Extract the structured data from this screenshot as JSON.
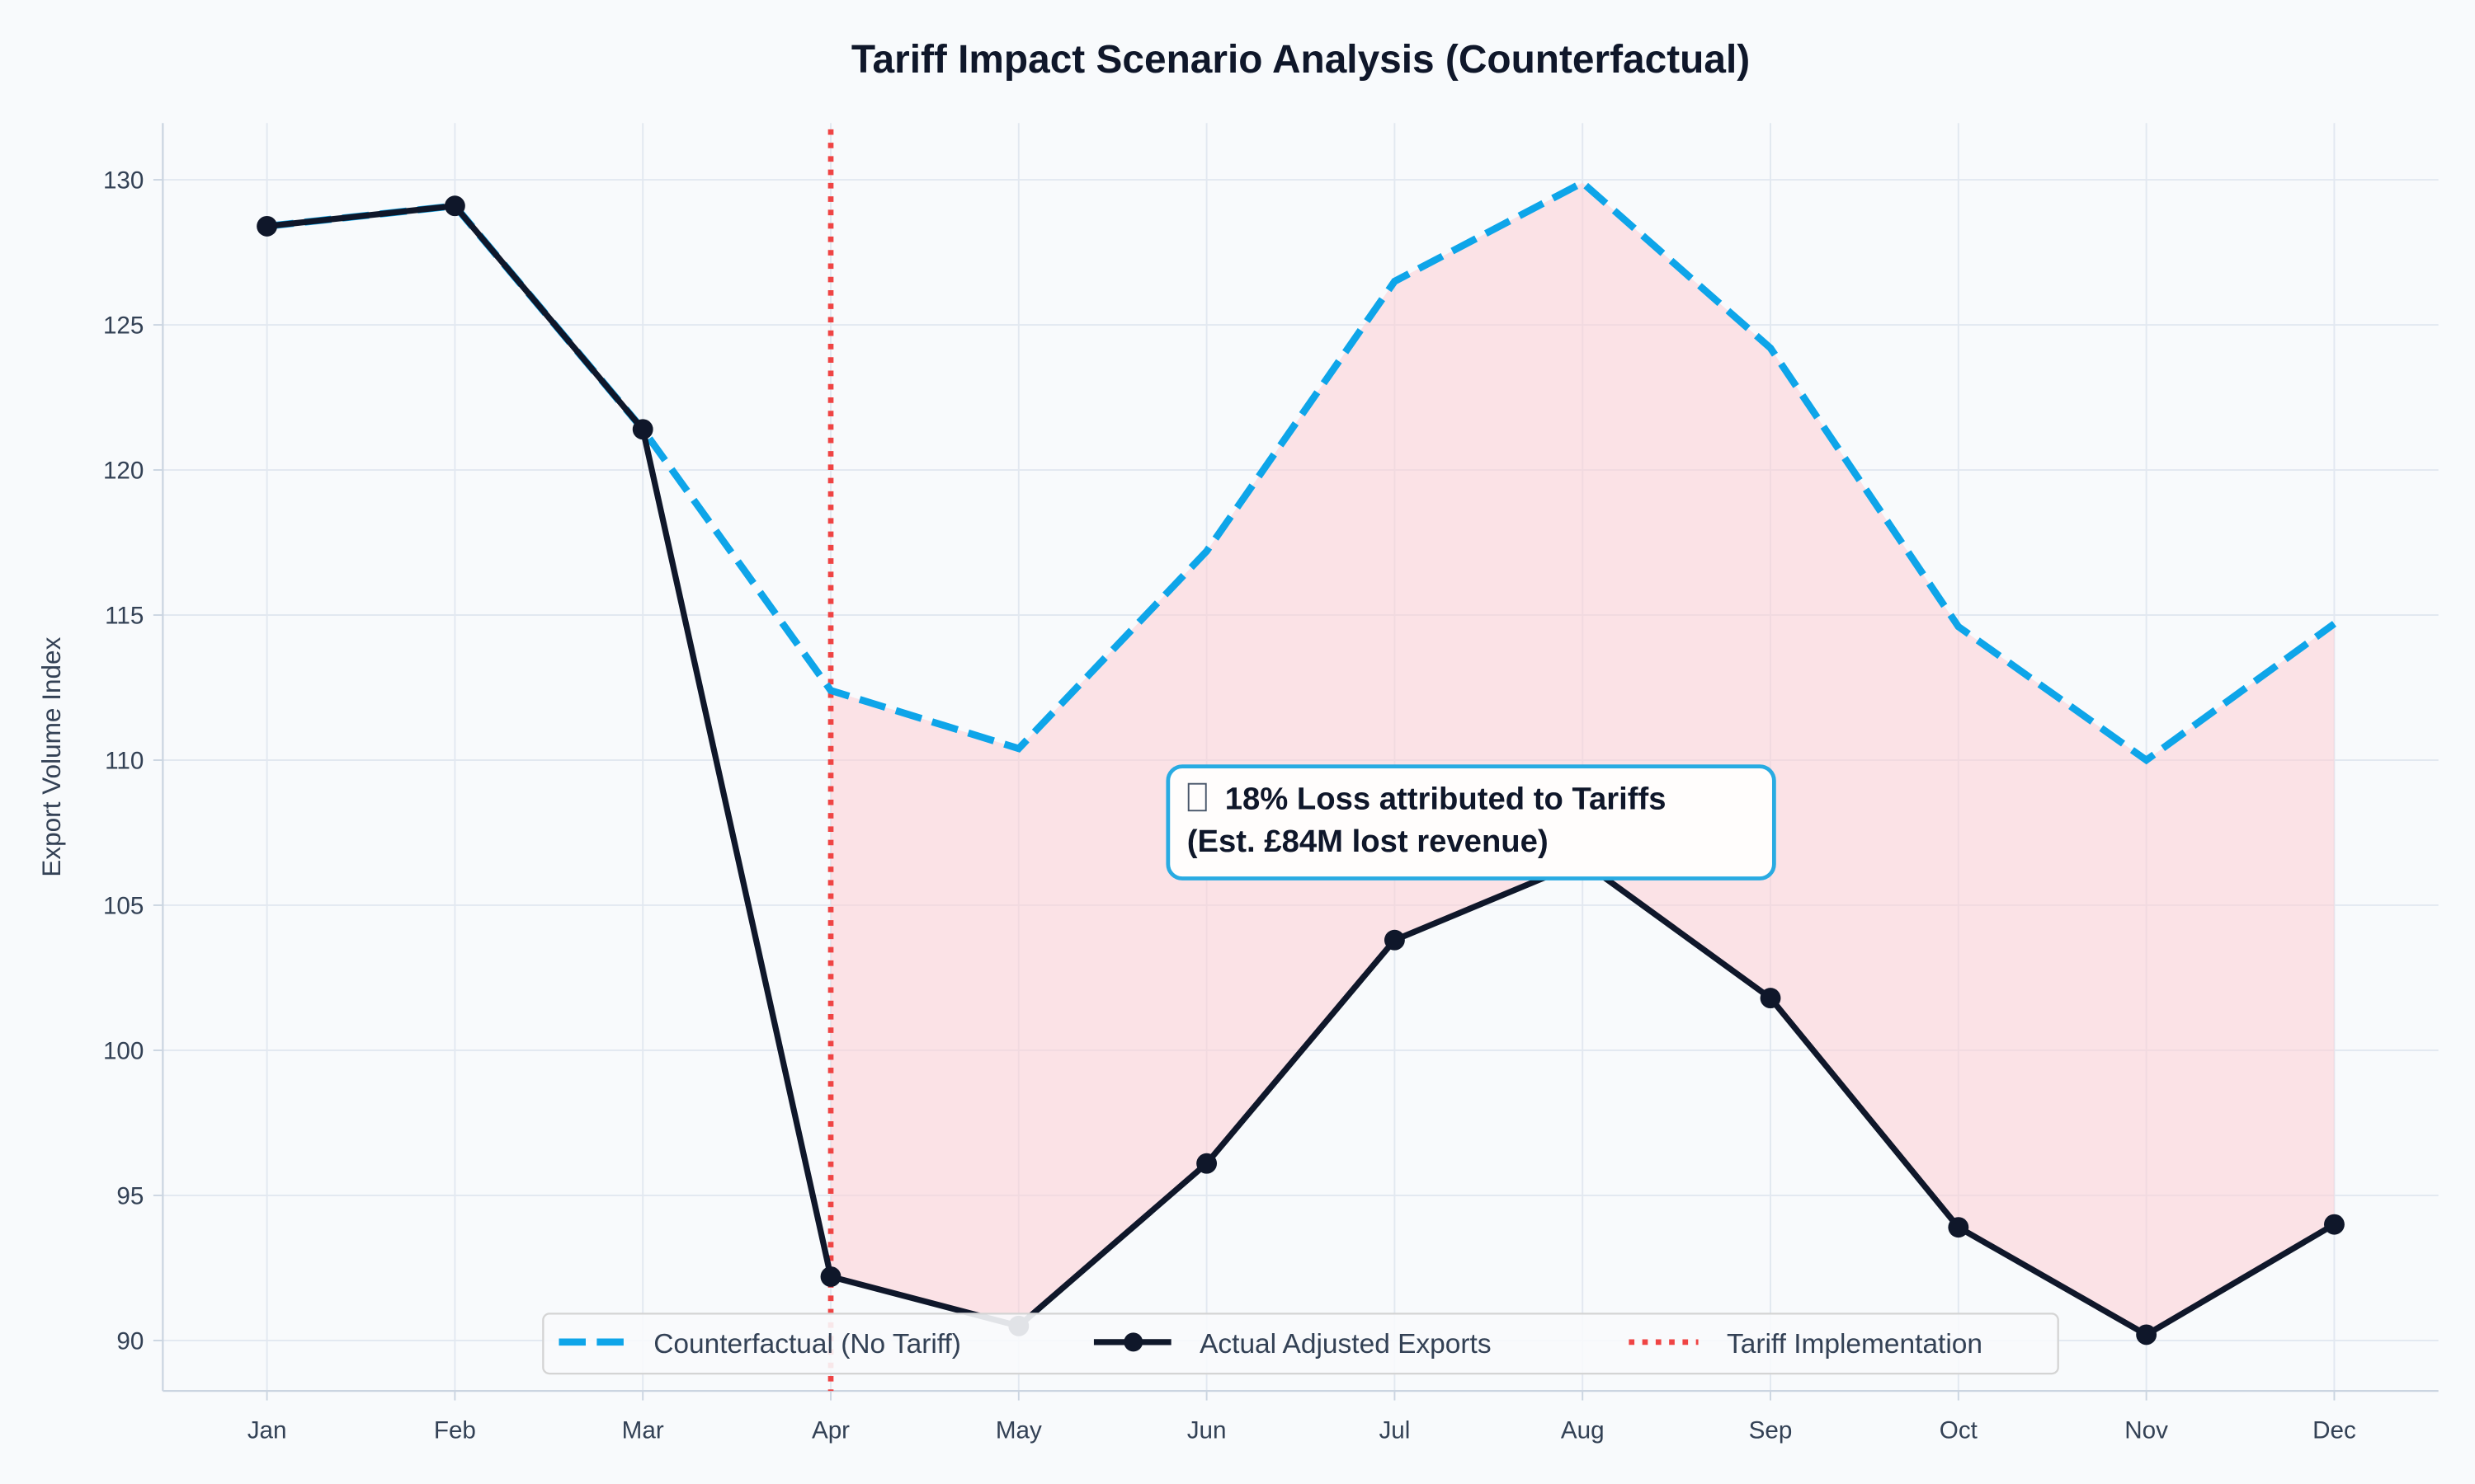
{
  "chart_data": {
    "type": "line",
    "title": "Tariff Impact Scenario Analysis (Counterfactual)",
    "xlabel": "",
    "ylabel": "Export Volume Index",
    "categories": [
      "Jan",
      "Feb",
      "Mar",
      "Apr",
      "May",
      "Jun",
      "Jul",
      "Aug",
      "Sep",
      "Oct",
      "Nov",
      "Dec"
    ],
    "ylim": [
      88.2,
      131.9
    ],
    "yticks": [
      90,
      95,
      100,
      105,
      110,
      115,
      120,
      125,
      130
    ],
    "grid": true,
    "legend_position": "lower-center",
    "series": [
      {
        "name": "Counterfactual (No Tariff)",
        "style": "dashed",
        "color": "#0ea5e9",
        "values": [
          128.4,
          129.1,
          121.4,
          112.4,
          110.4,
          117.2,
          126.5,
          129.9,
          124.2,
          114.6,
          110.0,
          114.7
        ]
      },
      {
        "name": "Actual Adjusted Exports",
        "style": "solid-markers",
        "color": "#0f172a",
        "values": [
          128.4,
          129.1,
          121.4,
          92.2,
          90.5,
          96.1,
          103.8,
          106.5,
          101.8,
          93.9,
          90.2,
          94.0
        ]
      }
    ],
    "vline": {
      "name": "Tariff Implementation",
      "x": "Apr",
      "color": "#ef4444",
      "style": "dotted"
    },
    "fill_between": {
      "from": "Apr",
      "to": "Dec",
      "color": "#fecdd3"
    },
    "annotation": {
      "icon": "missing-glyph-box",
      "line1": "18% Loss attributed to Tariffs",
      "line2": "(Est. £84M lost revenue)",
      "x": "Jun",
      "y": 108,
      "border_color": "#0ea5e9"
    }
  }
}
